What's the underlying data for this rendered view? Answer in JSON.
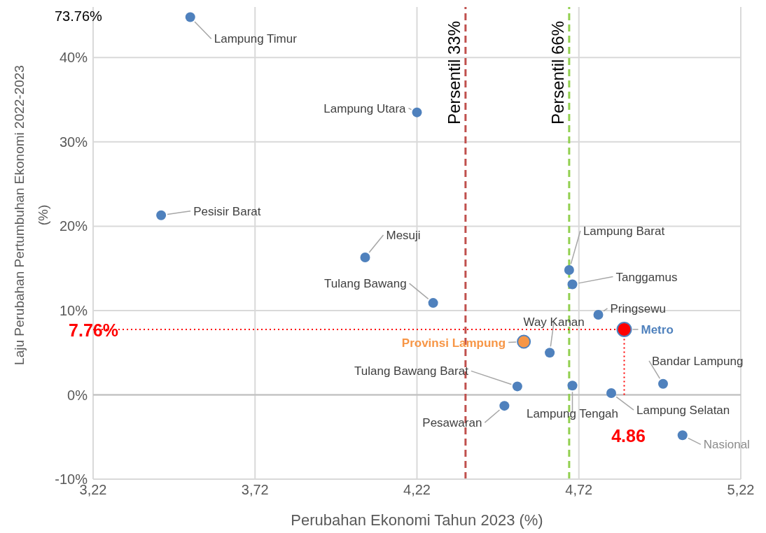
{
  "chart_data": {
    "type": "scatter",
    "xlabel": "Perubahan Ekonomi Tahun 2023 (%)",
    "ylabel": "Laju Perubahan Pertumbuhan Ekonomi 2022-2023 (%)",
    "xlim": [
      3.22,
      5.22
    ],
    "xticks": [
      {
        "value": 3.22,
        "label": "3,22"
      },
      {
        "value": 3.72,
        "label": "3,72"
      },
      {
        "value": 4.22,
        "label": "4,22"
      },
      {
        "value": 4.72,
        "label": "4,72"
      },
      {
        "value": 5.22,
        "label": "5,22"
      }
    ],
    "ylim": [
      -10,
      46
    ],
    "yticks": [
      {
        "value": -10,
        "label": "-10%"
      },
      {
        "value": 0,
        "label": "0%"
      },
      {
        "value": 10,
        "label": "10%"
      },
      {
        "value": 20,
        "label": "20%"
      },
      {
        "value": 30,
        "label": "30%"
      },
      {
        "value": 40,
        "label": "40%"
      }
    ],
    "grid": true,
    "legend": false,
    "marker": "circle",
    "series": [
      {
        "name": "Lampung Timur",
        "color": "#4f81bd",
        "x": [
          3.52
        ],
        "values": [
          44.8
        ]
      },
      {
        "name": "Lampung Utara",
        "color": "#4f81bd",
        "x": [
          4.22
        ],
        "values": [
          33.5
        ]
      },
      {
        "name": "Pesisir Barat",
        "color": "#4f81bd",
        "x": [
          3.43
        ],
        "values": [
          21.3
        ]
      },
      {
        "name": "Mesuji",
        "color": "#4f81bd",
        "x": [
          4.06
        ],
        "values": [
          16.3
        ]
      },
      {
        "name": "Tulang Bawang",
        "color": "#4f81bd",
        "x": [
          4.27
        ],
        "values": [
          10.9
        ]
      },
      {
        "name": "Lampung Barat",
        "color": "#4f81bd",
        "x": [
          4.69
        ],
        "values": [
          14.8
        ]
      },
      {
        "name": "Tanggamus",
        "color": "#4f81bd",
        "x": [
          4.7
        ],
        "values": [
          13.1
        ]
      },
      {
        "name": "Pringsewu",
        "color": "#4f81bd",
        "x": [
          4.78
        ],
        "values": [
          9.5
        ]
      },
      {
        "name": "Metro",
        "color": "#ff0000",
        "x": [
          4.86
        ],
        "values": [
          7.76
        ]
      },
      {
        "name": "Way Kanan",
        "color": "#4f81bd",
        "x": [
          4.63
        ],
        "values": [
          5.0
        ]
      },
      {
        "name": "Provinsi Lampung",
        "color": "#f79646",
        "x": [
          4.55
        ],
        "values": [
          6.3
        ]
      },
      {
        "name": "Tulang Bawang Barat",
        "color": "#4f81bd",
        "x": [
          4.53
        ],
        "values": [
          1.0
        ]
      },
      {
        "name": "Lampung Tengah",
        "color": "#4f81bd",
        "x": [
          4.7
        ],
        "values": [
          1.1
        ]
      },
      {
        "name": "Pesawaran",
        "color": "#4f81bd",
        "x": [
          4.49
        ],
        "values": [
          -1.3
        ]
      },
      {
        "name": "Lampung Selatan",
        "color": "#4f81bd",
        "x": [
          4.82
        ],
        "values": [
          0.2
        ]
      },
      {
        "name": "Bandar Lampung",
        "color": "#4f81bd",
        "x": [
          4.98
        ],
        "values": [
          1.3
        ]
      },
      {
        "name": "Nasional",
        "color": "#4f81bd",
        "x": [
          5.04
        ],
        "values": [
          -4.8
        ]
      }
    ],
    "ref_lines": [
      {
        "axis": "x",
        "value": 4.37,
        "label": "Persentil 33%",
        "color": "#c0504d",
        "line_style": "dashed"
      },
      {
        "axis": "x",
        "value": 4.69,
        "label": "Persentil 66%",
        "color": "#92d050",
        "line_style": "dashed"
      },
      {
        "axis": "y",
        "value": 7.76,
        "label": "7.76%",
        "color": "#ff0000",
        "line_style": "dotted"
      },
      {
        "axis": "x",
        "value": 4.86,
        "label": "4.86",
        "color": "#ff0000",
        "line_style": "dotted"
      }
    ],
    "annotations": [
      "73.76%"
    ]
  }
}
